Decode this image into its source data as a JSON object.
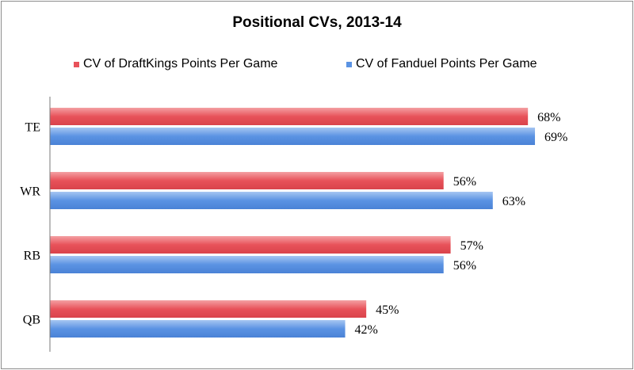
{
  "chart_data": {
    "type": "bar",
    "orientation": "horizontal",
    "title": "Positional CVs, 2013-14",
    "categories": [
      "TE",
      "WR",
      "RB",
      "QB"
    ],
    "series": [
      {
        "name": "CV of DraftKings Points Per Game",
        "values": [
          68,
          56,
          57,
          45
        ],
        "labels": [
          "68%",
          "56%",
          "57%",
          "45%"
        ],
        "color": "#e8525a"
      },
      {
        "name": "CV of Fanduel Points Per Game",
        "values": [
          69,
          63,
          56,
          42
        ],
        "labels": [
          "69%",
          "63%",
          "56%",
          "42%"
        ],
        "color": "#5b93e3"
      }
    ],
    "value_unit": "percent",
    "xlim": [
      0,
      70
    ],
    "grid": false,
    "legend_position": "top"
  }
}
